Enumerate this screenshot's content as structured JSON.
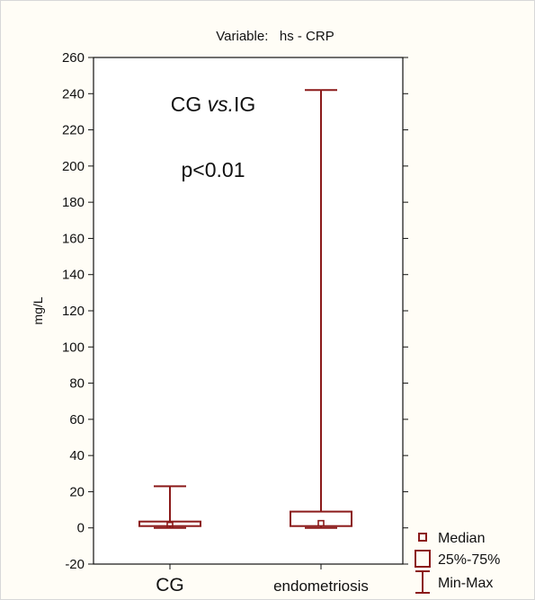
{
  "chart_data": {
    "type": "boxplot",
    "title": "Variable:   hs - CRP",
    "ylabel": "mg/L",
    "xlabel": "",
    "ylim": [
      -20,
      260
    ],
    "yticks": [
      -20,
      0,
      20,
      40,
      60,
      80,
      100,
      120,
      140,
      160,
      180,
      200,
      220,
      240,
      260
    ],
    "categories": [
      "CG",
      "endometriosis"
    ],
    "boxes": [
      {
        "category": "CG",
        "min": 0,
        "q1": 1,
        "median": 1.5,
        "q3": 3.5,
        "max": 23
      },
      {
        "category": "endometriosis",
        "min": 0,
        "q1": 1,
        "median": 2.5,
        "q3": 9,
        "max": 242
      }
    ],
    "annotations": {
      "comparison_prefix": "CG ",
      "comparison_italic": "vs.",
      "comparison_suffix": "IG",
      "pvalue": "p<0.01"
    },
    "legend": {
      "position": "bottom-right",
      "items": [
        {
          "label": "Median",
          "symbol": "small-square"
        },
        {
          "label": "25%-75%",
          "symbol": "box"
        },
        {
          "label": "Min-Max",
          "symbol": "whisker"
        }
      ]
    },
    "color": "#8b1a1a",
    "grid": false
  }
}
